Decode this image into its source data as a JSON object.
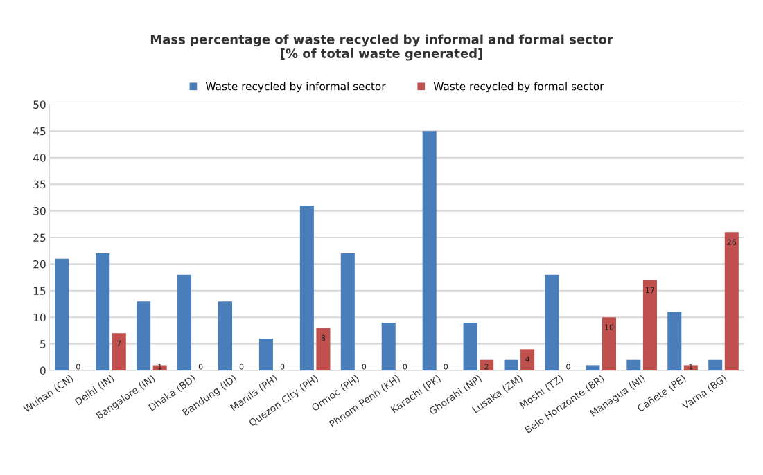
{
  "chart_data": {
    "type": "bar",
    "title": "Mass percentage of waste recycled by informal and formal sector\n[% of total waste generated]",
    "categories": [
      "Wuhan (CN)",
      "Delhi (IN)",
      "Bangalore (IN)",
      "Dhaka (BD)",
      "Bandung (ID)",
      "Manila (PH)",
      "Quezon City (PH)",
      "Ormoc (PH)",
      "Phnom Penh (KH)",
      "Karachi (PK)",
      "Ghorahi (NP)",
      "Lusaka (ZM)",
      "Moshi (TZ)",
      "Belo Horizonte (BR)",
      "Managua (NI)",
      "Cañete (PE)",
      "Varna (BG)"
    ],
    "series": [
      {
        "name": "Waste recycled by informal sector",
        "color": "#4a7ebb",
        "values": [
          21,
          22,
          13,
          18,
          13,
          6,
          31,
          22,
          9,
          45,
          9,
          2,
          18,
          1,
          2,
          11,
          2
        ]
      },
      {
        "name": "Waste recycled by formal sector",
        "color": "#c0504d",
        "values": [
          0,
          7,
          1,
          0,
          0,
          0,
          8,
          0,
          0,
          0,
          2,
          4,
          0,
          10,
          17,
          1,
          26
        ],
        "value_labels": [
          "0",
          "7",
          "1",
          "0",
          "0",
          "0",
          "8",
          "0",
          "0",
          "0",
          "2",
          "4",
          "0",
          "10",
          "17",
          "1",
          "26"
        ]
      }
    ],
    "ylim": [
      0,
      50
    ],
    "yticks": [
      0,
      5,
      10,
      15,
      20,
      25,
      30,
      35,
      40,
      45,
      50
    ],
    "grid": "y",
    "legend": "top"
  }
}
